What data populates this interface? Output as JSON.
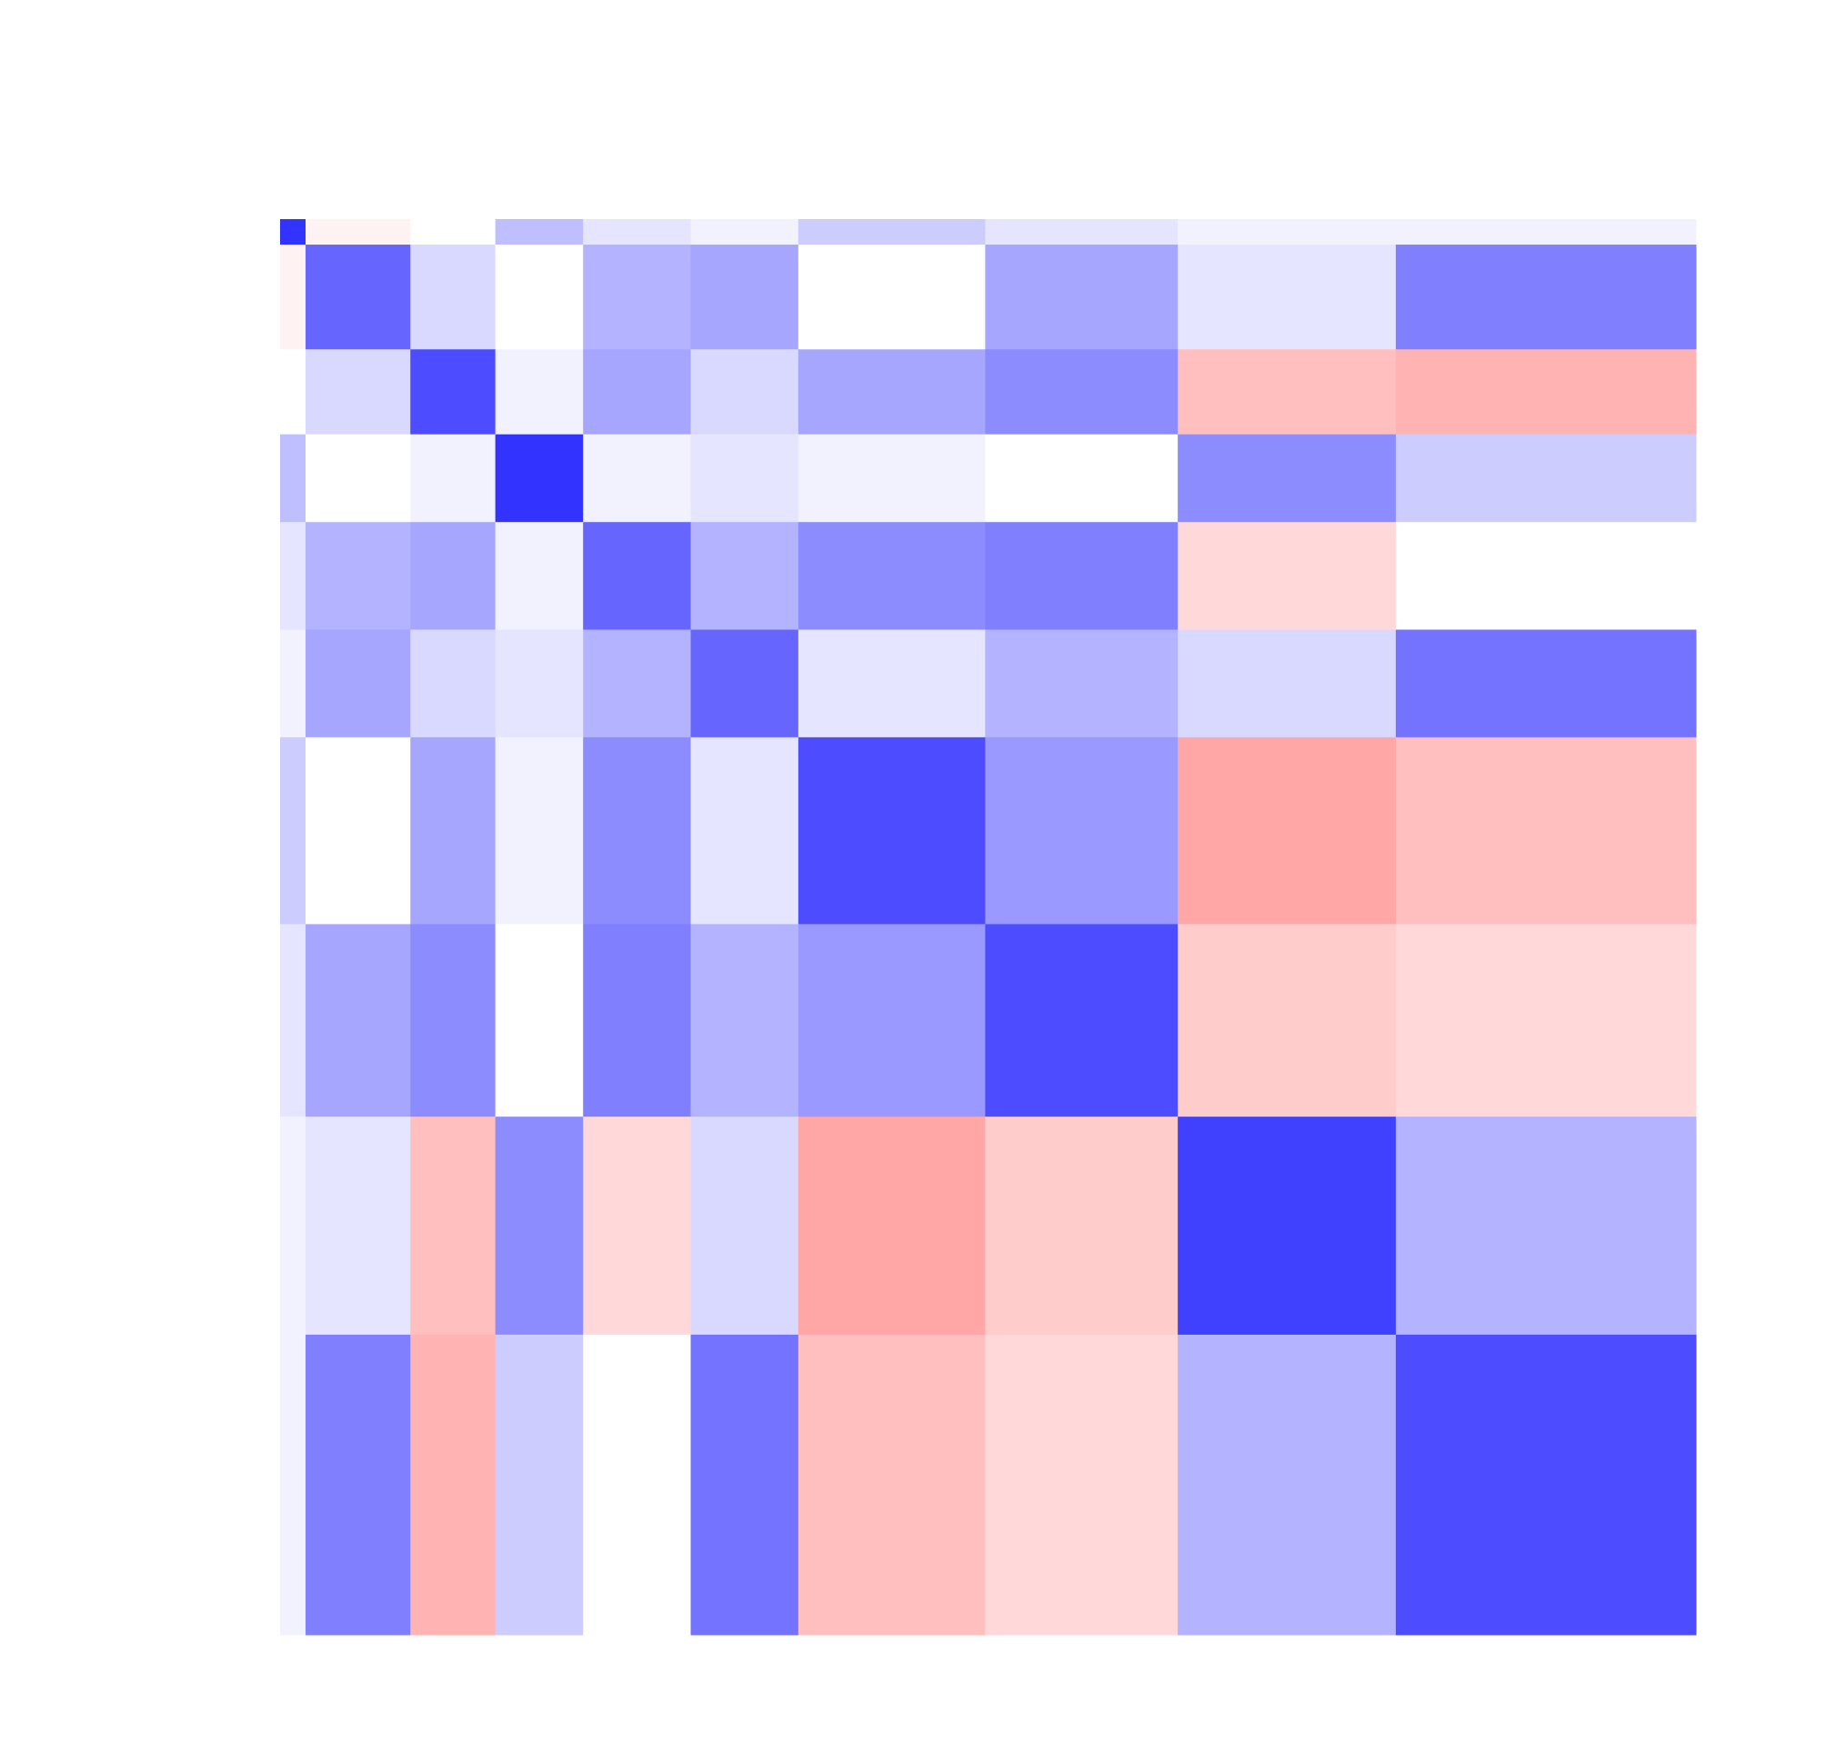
{
  "chart_data": {
    "type": "heatmap",
    "edges": [
      0,
      9,
      46,
      76,
      107,
      145,
      183,
      249,
      317,
      394,
      500
    ],
    "zlim": [
      -1,
      1
    ],
    "colors": {
      "low": "#ff0000",
      "mid": "#ffffff",
      "high": "#0000ff"
    },
    "matrix": [
      [
        0.8,
        -0.05,
        0.0,
        0.25,
        0.1,
        0.05,
        0.2,
        0.1,
        0.05,
        0.05
      ],
      [
        -0.05,
        0.6,
        0.15,
        0.0,
        0.3,
        0.35,
        0.0,
        0.35,
        0.1,
        0.5
      ],
      [
        0.0,
        0.15,
        0.7,
        0.05,
        0.35,
        0.15,
        0.35,
        0.45,
        -0.25,
        -0.3
      ],
      [
        0.25,
        0.0,
        0.05,
        0.8,
        0.05,
        0.1,
        0.05,
        0.0,
        0.45,
        0.2
      ],
      [
        0.1,
        0.3,
        0.35,
        0.05,
        0.6,
        0.3,
        0.45,
        0.5,
        -0.15,
        0.0
      ],
      [
        0.05,
        0.35,
        0.15,
        0.1,
        0.3,
        0.6,
        0.1,
        0.3,
        0.15,
        0.55
      ],
      [
        0.2,
        0.0,
        0.35,
        0.05,
        0.45,
        0.1,
        0.7,
        0.4,
        -0.35,
        -0.25
      ],
      [
        0.1,
        0.35,
        0.45,
        0.0,
        0.5,
        0.3,
        0.4,
        0.7,
        -0.2,
        -0.15
      ],
      [
        0.05,
        0.1,
        -0.25,
        0.45,
        -0.15,
        0.15,
        -0.35,
        -0.2,
        0.75,
        0.3
      ],
      [
        0.05,
        0.5,
        -0.3,
        0.2,
        0.0,
        0.55,
        -0.25,
        -0.15,
        0.3,
        0.7
      ]
    ]
  }
}
